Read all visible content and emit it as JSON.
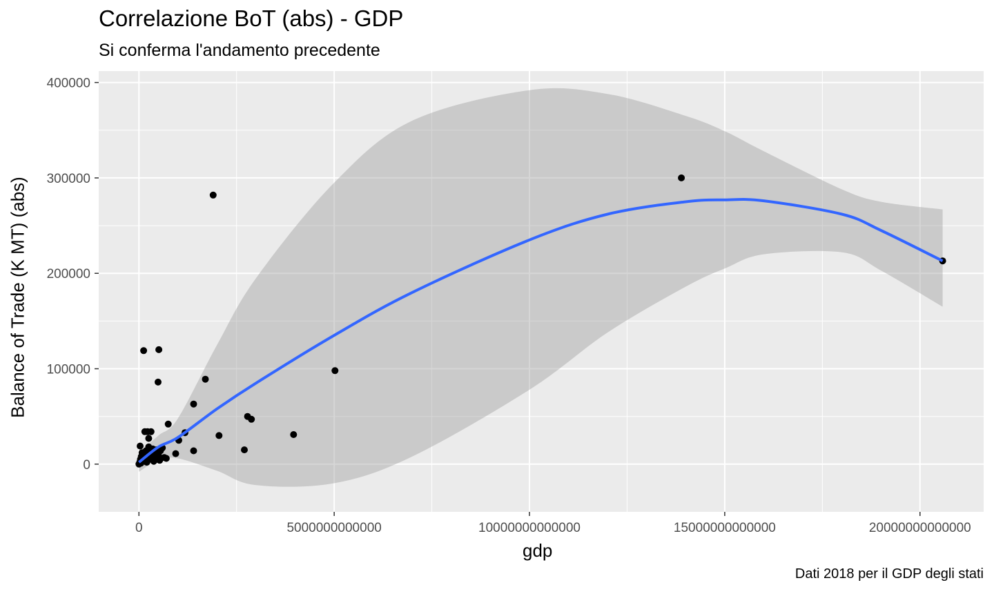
{
  "chart_data": {
    "type": "scatter",
    "title": "Correlazione BoT (abs) - GDP",
    "subtitle": "Si conferma l'andamento precedente",
    "caption": "Dati 2018 per il GDP degli stati",
    "xlabel": "gdp",
    "ylabel": "Balance of Trade (K MT) (abs)",
    "xlim": [
      -1030000000000,
      21630000000000
    ],
    "ylim": [
      -50000,
      412000
    ],
    "x_ticks": [
      0,
      5000000000000,
      10000000000000,
      15000000000000,
      20000000000000
    ],
    "x_tick_labels": [
      "0",
      "5000000000000",
      "10000000000000",
      "15000000000000",
      "20000000000000"
    ],
    "y_ticks": [
      0,
      100000,
      200000,
      300000,
      400000
    ],
    "y_tick_labels": [
      "0",
      "100000",
      "200000",
      "300000",
      "400000"
    ],
    "grid": true,
    "colors": {
      "panel_bg": "#ebebeb",
      "grid": "#ffffff",
      "points": "#000000",
      "smooth_line": "#3366ff",
      "ribbon": "#999999"
    },
    "points": [
      [
        0,
        0
      ],
      [
        20000000000,
        2000
      ],
      [
        40000000000,
        5000
      ],
      [
        60000000000,
        8000
      ],
      [
        80000000000,
        12000
      ],
      [
        30000000000,
        19000
      ],
      [
        50000000000,
        1000
      ],
      [
        90000000000,
        3000
      ],
      [
        120000000000,
        6000
      ],
      [
        150000000000,
        10000
      ],
      [
        180000000000,
        14000
      ],
      [
        200000000000,
        2000
      ],
      [
        250000000000,
        18000
      ],
      [
        280000000000,
        5000
      ],
      [
        300000000000,
        9000
      ],
      [
        330000000000,
        13000
      ],
      [
        350000000000,
        16000
      ],
      [
        380000000000,
        3000
      ],
      [
        400000000000,
        7000
      ],
      [
        420000000000,
        11000
      ],
      [
        450000000000,
        15000
      ],
      [
        480000000000,
        5000
      ],
      [
        500000000000,
        9000
      ],
      [
        530000000000,
        4000
      ],
      [
        550000000000,
        14000
      ],
      [
        600000000000,
        17000
      ],
      [
        650000000000,
        7000
      ],
      [
        700000000000,
        6000
      ],
      [
        250000000000,
        27000
      ],
      [
        120000000000,
        119000
      ],
      [
        510000000000,
        120000
      ],
      [
        490000000000,
        86000
      ],
      [
        150000000000,
        34000
      ],
      [
        220000000000,
        34000
      ],
      [
        310000000000,
        34000
      ],
      [
        750000000000,
        42000
      ],
      [
        940000000000,
        11000
      ],
      [
        1020000000000,
        25000
      ],
      [
        1180000000000,
        33000
      ],
      [
        1400000000000,
        14000
      ],
      [
        1400000000000,
        63000
      ],
      [
        1700000000000,
        89000
      ],
      [
        1900000000000,
        282000
      ],
      [
        2050000000000,
        30000
      ],
      [
        2700000000000,
        15000
      ],
      [
        2780000000000,
        50000
      ],
      [
        2880000000000,
        47000
      ],
      [
        3960000000000,
        31000
      ],
      [
        5020000000000,
        98000
      ],
      [
        13890000000000,
        300000
      ],
      [
        20580000000000,
        213000
      ]
    ],
    "smooth": {
      "x": [
        0,
        500000000000,
        1000000000000,
        2000000000000,
        3000000000000,
        5000000000000,
        7000000000000,
        10000000000000,
        12000000000000,
        14000000000000,
        15000000000000,
        16000000000000,
        18000000000000,
        19000000000000,
        20580000000000
      ],
      "y": [
        2000,
        18000,
        28000,
        58000,
        85000,
        135000,
        180000,
        235000,
        262000,
        275000,
        277000,
        276000,
        262000,
        245000,
        213000
      ],
      "upper": [
        12000,
        30000,
        48000,
        125000,
        195000,
        295000,
        360000,
        392000,
        388000,
        365000,
        349000,
        328000,
        288000,
        275000,
        267000
      ],
      "lower": [
        -8000,
        4000,
        6000,
        -7000,
        -22000,
        -20000,
        8000,
        78000,
        138000,
        186000,
        205000,
        220000,
        222000,
        203000,
        165000
      ]
    }
  }
}
